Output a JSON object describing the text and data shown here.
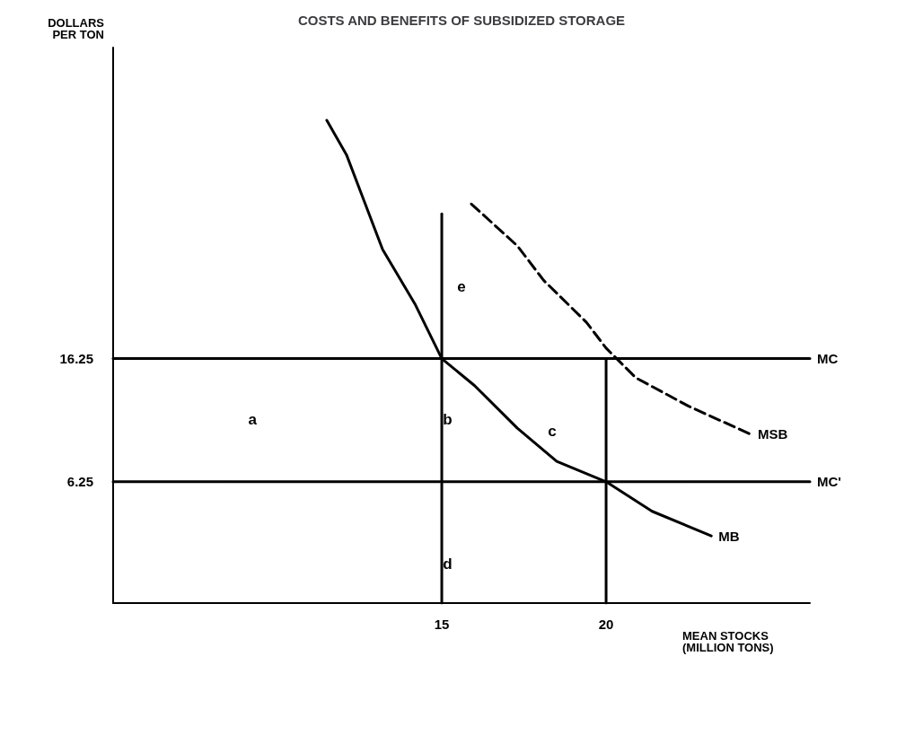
{
  "chart_data": {
    "type": "line",
    "title": "COSTS AND BENEFITS OF SUBSIDIZED STORAGE",
    "xlabel": "MEAN STOCKS\n(MILLION TONS)",
    "ylabel": "DOLLARS\nPER TON",
    "xlim": [
      5,
      26.2
    ],
    "ylim": [
      -3.6,
      41.5
    ],
    "xticks": [
      15,
      20
    ],
    "yticks": [
      6.25,
      16.25
    ],
    "grid": false,
    "legend": false,
    "marker": "none",
    "series": [
      {
        "name": "MC",
        "color": "#000000",
        "x": [
          5,
          26.2
        ],
        "values": [
          16.25,
          16.25
        ]
      },
      {
        "name": "MC'",
        "color": "#000000",
        "x": [
          5,
          26.2
        ],
        "values": [
          6.25,
          6.25
        ]
      },
      {
        "name": "MB",
        "color": "#000000",
        "x": [
          11.5,
          12.1,
          12.7,
          13.2,
          14.2,
          15,
          16.0,
          17.3,
          18.5,
          20,
          21.4,
          23.2
        ],
        "values": [
          35.6,
          32.8,
          28.6,
          25.1,
          20.6,
          16.25,
          14.05,
          10.6,
          7.9,
          6.25,
          3.85,
          1.85
        ]
      },
      {
        "name": "MSB",
        "color": "#000000",
        "line_style": "dashed",
        "x": [
          15.9,
          17.3,
          18.1,
          19.4,
          20,
          20.9,
          22.5,
          24.4
        ],
        "values": [
          28.8,
          25.4,
          22.6,
          19.2,
          17.1,
          14.7,
          12.4,
          10.1
        ]
      },
      {
        "color": "#000000",
        "x": [
          15,
          15
        ],
        "values": [
          -3.6,
          28
        ]
      },
      {
        "color": "#000000",
        "x": [
          20,
          20
        ],
        "values": [
          -3.6,
          16.25
        ]
      }
    ],
    "annotations": [
      "a",
      "b",
      "c",
      "d",
      "e"
    ]
  }
}
